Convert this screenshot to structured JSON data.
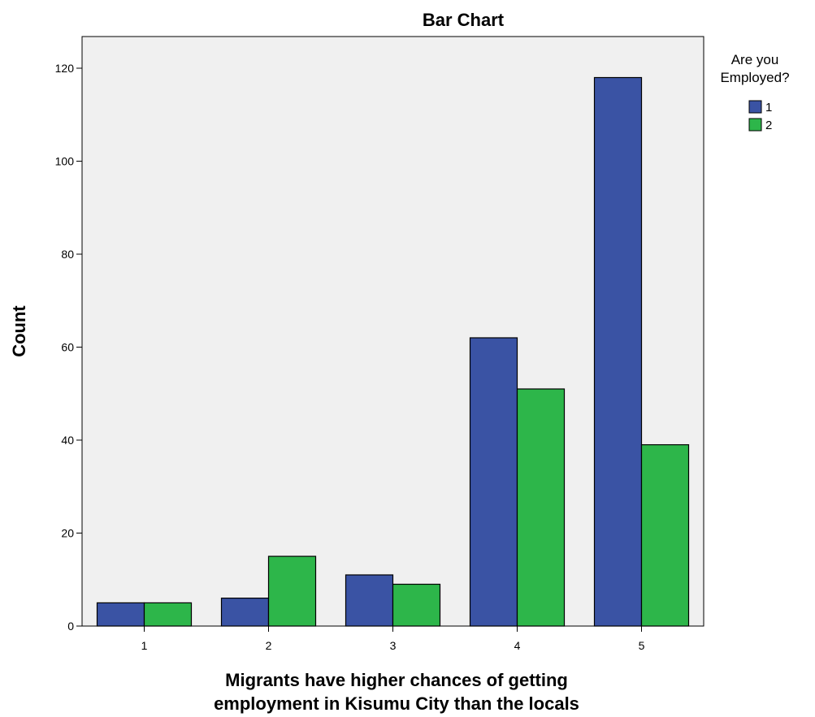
{
  "chart_data": {
    "type": "bar",
    "title": "Bar Chart",
    "xlabel": "Migrants have higher chances of getting employment in Kisumu City than the locals",
    "xlabel_lines": [
      "Migrants have higher chances of getting",
      "employment in Kisumu City than the locals"
    ],
    "ylabel": "Count",
    "categories": [
      "1",
      "2",
      "3",
      "4",
      "5"
    ],
    "yticks": [
      0,
      20,
      40,
      60,
      80,
      100,
      120
    ],
    "ylim": [
      0,
      120
    ],
    "grid": false,
    "legend": {
      "title_lines": [
        "Are you",
        "Employed?"
      ],
      "placement": "right"
    },
    "series": [
      {
        "name": "1",
        "values": [
          5,
          6,
          11,
          62,
          118
        ],
        "color": "#3a53a4"
      },
      {
        "name": "2",
        "values": [
          5,
          15,
          9,
          51,
          39
        ],
        "color": "#2db64a"
      }
    ],
    "colors": {
      "plot_background": "#f0f0f0",
      "bar_stroke": "#000000"
    }
  }
}
